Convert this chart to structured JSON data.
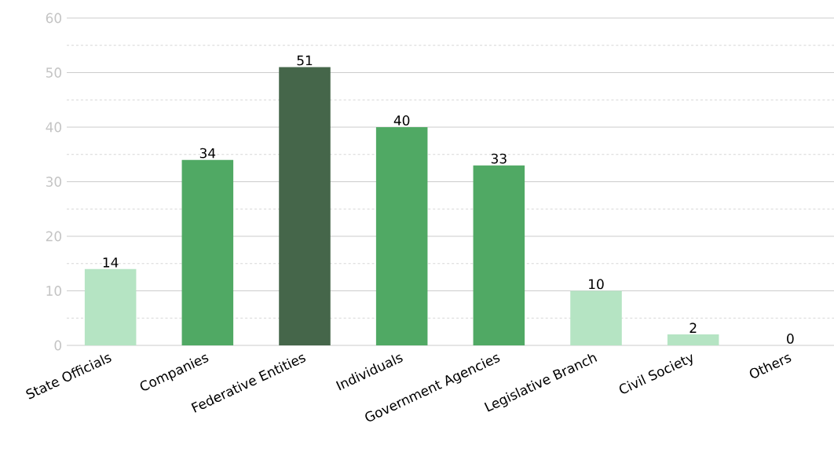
{
  "chart_data": {
    "type": "bar",
    "categories": [
      "State Officials",
      "Companies",
      "Federative Entities",
      "Individuals",
      "Government Agencies",
      "Legislative Branch",
      "Civil Society",
      "Others"
    ],
    "values": [
      14,
      34,
      51,
      40,
      33,
      10,
      2,
      0
    ],
    "colors": [
      "#b5e4c3",
      "#50a964",
      "#45664a",
      "#50a964",
      "#50a964",
      "#b5e4c3",
      "#b5e4c3",
      "#b5e4c3"
    ],
    "ylim": [
      0,
      60
    ],
    "yticks": [
      0,
      {
        "value": 5,
        "label": null
      },
      10,
      {
        "value": 15,
        "label": null
      },
      20,
      {
        "value": 25,
        "label": null
      },
      30,
      {
        "value": 35,
        "label": null
      },
      40,
      {
        "value": 45,
        "label": null
      },
      50,
      {
        "value": 55,
        "label": null
      },
      60
    ],
    "grid": "y",
    "data_labels": true
  }
}
